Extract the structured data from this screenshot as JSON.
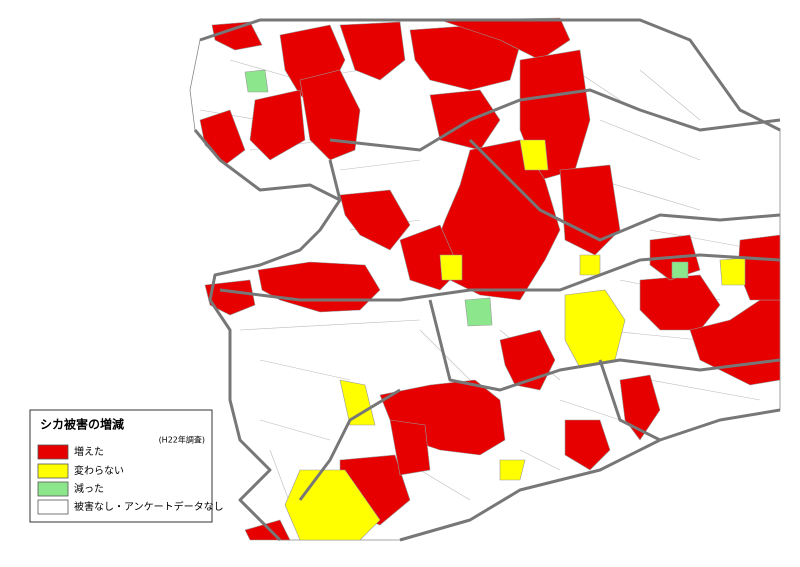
{
  "legend": {
    "title": "シカ被害の増減",
    "subtitle": "(H22年調査)",
    "items": [
      {
        "label": "増えた",
        "color": "#e60000"
      },
      {
        "label": "変わらない",
        "color": "#ffff00"
      },
      {
        "label": "減った",
        "color": "#8ce68c"
      },
      {
        "label": "被害なし・アンケートデータなし",
        "color": "#ffffff"
      }
    ]
  }
}
